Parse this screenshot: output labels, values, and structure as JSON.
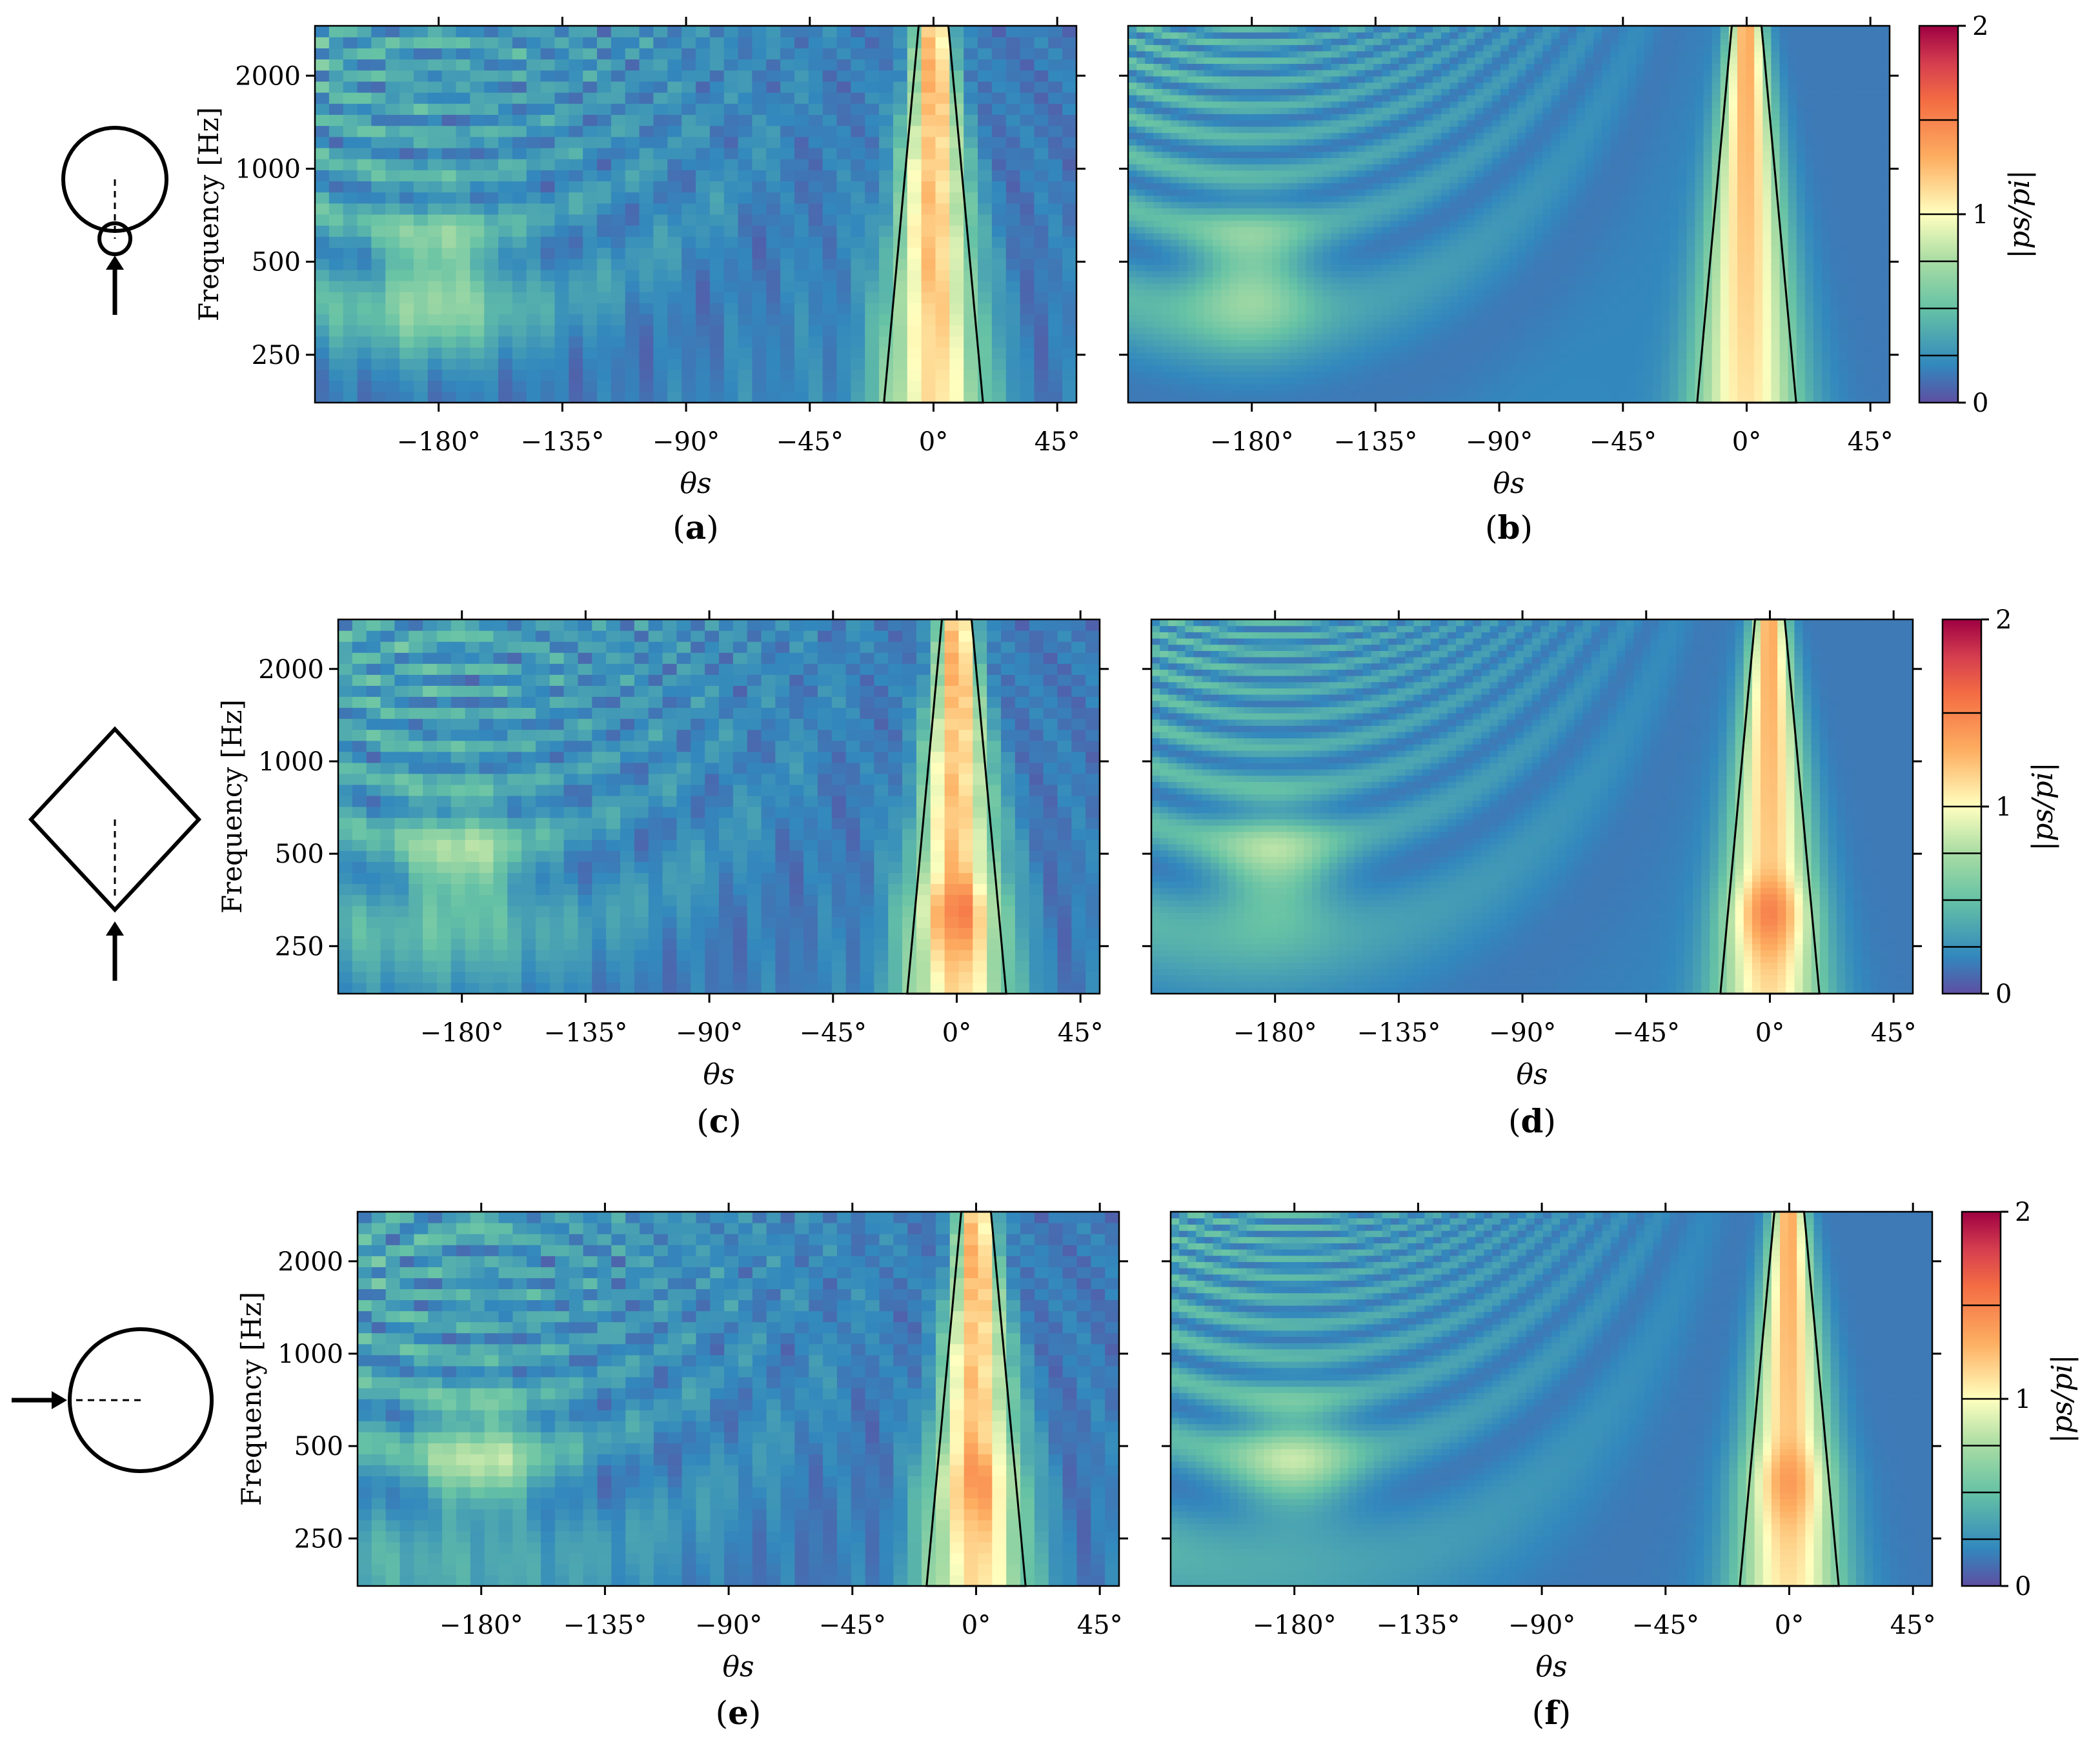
{
  "chart_data": {
    "type": "heatmap",
    "xlabel": "θs",
    "ylabel": "Frequency [Hz]",
    "x_range": [
      -225,
      52
    ],
    "y_range": [
      175,
      2900
    ],
    "y_scale": "log",
    "x_ticks": [
      -180,
      -135,
      -90,
      -45,
      0,
      45
    ],
    "x_tick_labels": [
      "−180°",
      "−135°",
      "−90°",
      "−45°",
      "0°",
      "45°"
    ],
    "y_ticks": [
      250,
      500,
      1000,
      2000
    ],
    "y_tick_labels": [
      "250",
      "500",
      "1000",
      "2000"
    ],
    "colorbar": {
      "label": "|ps/pi|",
      "range": [
        0,
        2
      ],
      "ticks": [
        0,
        1,
        2
      ],
      "tick_labels": [
        "0",
        "1",
        "2"
      ],
      "levels": [
        0.25,
        0.5,
        0.75,
        1.0,
        1.5
      ],
      "colormap": "spectral-reversed"
    },
    "rows": [
      {
        "shape": "circle",
        "panels": [
          {
            "label": "a",
            "kind": "measured"
          },
          {
            "label": "b",
            "kind": "simulated"
          }
        ]
      },
      {
        "shape": "scalloped-diamond",
        "panels": [
          {
            "label": "c",
            "kind": "measured"
          },
          {
            "label": "d",
            "kind": "simulated"
          }
        ]
      },
      {
        "shape": "scalloped-circle",
        "panels": [
          {
            "label": "e",
            "kind": "measured"
          },
          {
            "label": "f",
            "kind": "simulated"
          }
        ]
      }
    ]
  },
  "colors": {
    "low": "#5e4fa2",
    "mid_low": "#3288bd",
    "mid": "#66c2a5",
    "unity": "#ffffbf",
    "high": "#f46d43",
    "max": "#9e0142",
    "contour": "#000000"
  }
}
